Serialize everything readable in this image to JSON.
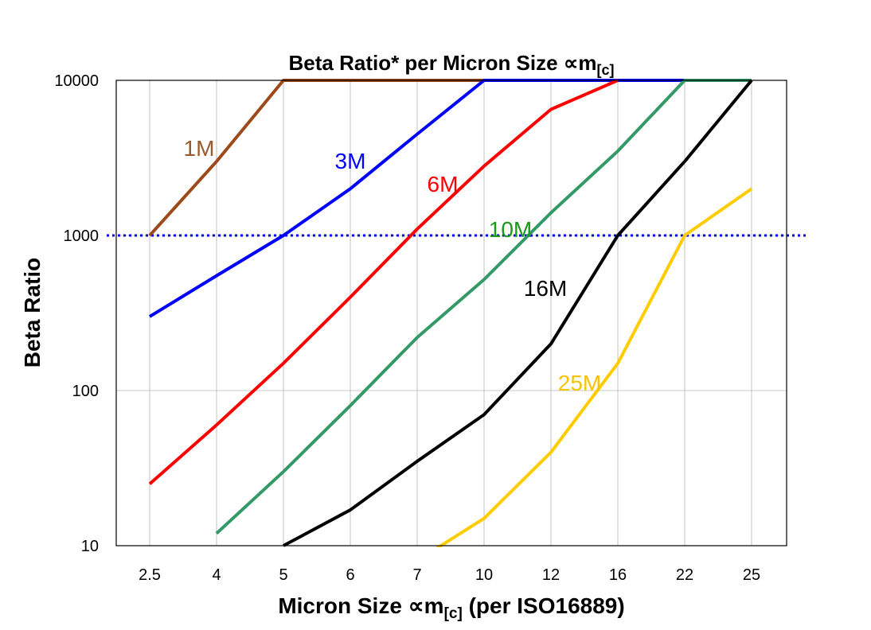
{
  "chart_data": {
    "type": "line",
    "title": "Beta Ratio* per Micron Size ∝m",
    "title_sub": "[c]",
    "xlabel": "Micron Size ∝m",
    "xlabel_sub": "[c]",
    "xlabel_suffix": " (per ISO16889)",
    "ylabel": "Beta Ratio",
    "y_scale": "log",
    "ylim": [
      10,
      10000
    ],
    "yticks": [
      "10",
      "100",
      "1000",
      "10000"
    ],
    "categories": [
      "2.5",
      "4",
      "5",
      "6",
      "7",
      "10",
      "12",
      "16",
      "22",
      "25"
    ],
    "grid": "on",
    "reference_line": {
      "y": 1000,
      "style": "dotted",
      "color": "#0000dd"
    },
    "series": [
      {
        "name": "1M",
        "color": "#9c4a1a",
        "label_color": "#9c5a2a",
        "values": [
          1000,
          3000,
          10000,
          10000,
          10000,
          10000,
          null,
          null,
          null,
          null
        ]
      },
      {
        "name": "3M",
        "color": "#0000ff",
        "label_color": "#0000ff",
        "values": [
          300,
          550,
          1000,
          2000,
          4500,
          10000,
          10000,
          10000,
          10000,
          null
        ]
      },
      {
        "name": "6M",
        "color": "#ff0000",
        "label_color": "#ff0000",
        "values": [
          25,
          60,
          150,
          400,
          1100,
          2800,
          6500,
          10000,
          null,
          null
        ]
      },
      {
        "name": "10M",
        "color": "#339966",
        "label_color": "#1a9a1a",
        "values": [
          null,
          12,
          30,
          80,
          220,
          520,
          1400,
          3500,
          10000,
          10000
        ]
      },
      {
        "name": "16M",
        "color": "#000000",
        "label_color": "#000000",
        "values": [
          null,
          null,
          10,
          17,
          35,
          70,
          200,
          1000,
          3000,
          10000
        ]
      },
      {
        "name": "25M",
        "color": "#ffcc00",
        "label_color": "#f5c400",
        "values": [
          null,
          null,
          null,
          null,
          8,
          15,
          40,
          150,
          1000,
          2000
        ]
      }
    ]
  }
}
